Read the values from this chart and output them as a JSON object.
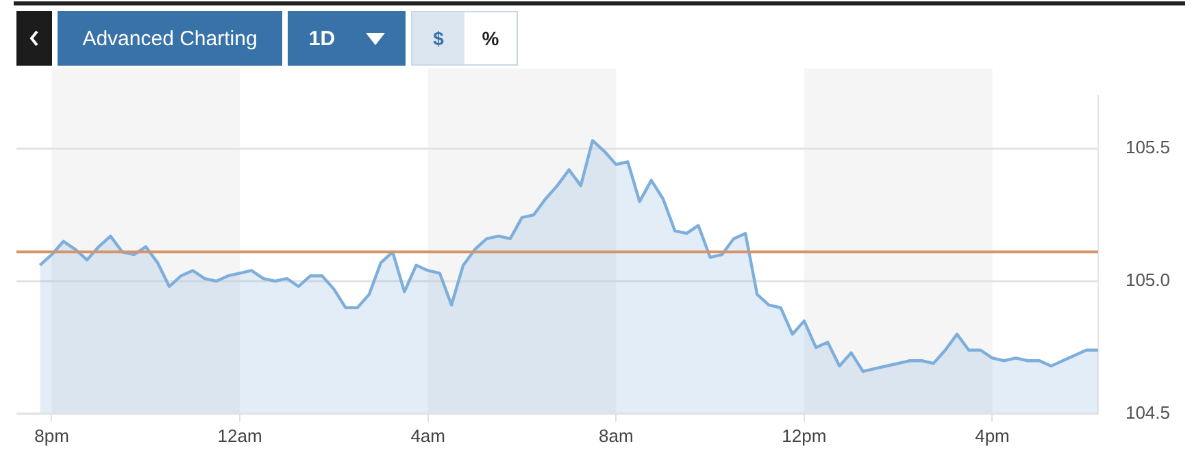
{
  "chart_data": {
    "type": "area",
    "annotations": [
      "Advanced Charting",
      "1D",
      "$",
      "%"
    ],
    "categories": [
      null,
      "8pm",
      null,
      null,
      null,
      null,
      null,
      null,
      null,
      null,
      null,
      null,
      null,
      null,
      null,
      null,
      null,
      "12am",
      null,
      null,
      null,
      null,
      null,
      null,
      null,
      null,
      null,
      null,
      null,
      null,
      null,
      null,
      null,
      "4am",
      null,
      null,
      null,
      null,
      null,
      null,
      null,
      null,
      null,
      null,
      null,
      null,
      null,
      null,
      null,
      "8am",
      null,
      null,
      null,
      null,
      null,
      null,
      null,
      null,
      null,
      null,
      null,
      null,
      null,
      null,
      null,
      "12pm",
      null,
      null,
      null,
      null,
      null,
      null,
      null,
      null,
      null,
      null,
      null,
      null,
      null,
      null,
      null,
      "4pm",
      null,
      null,
      null,
      null,
      null,
      null,
      null,
      null,
      null
    ],
    "values": [
      105.06,
      105.1,
      105.15,
      105.12,
      105.08,
      105.13,
      105.17,
      105.11,
      105.1,
      105.13,
      105.07,
      104.98,
      105.02,
      105.04,
      105.01,
      105.0,
      105.02,
      105.03,
      105.04,
      105.01,
      105.0,
      105.01,
      104.98,
      105.02,
      105.02,
      104.97,
      104.9,
      104.9,
      104.95,
      105.07,
      105.11,
      104.96,
      105.06,
      105.04,
      105.03,
      104.91,
      105.06,
      105.12,
      105.16,
      105.17,
      105.16,
      105.24,
      105.25,
      105.31,
      105.36,
      105.42,
      105.36,
      105.53,
      105.49,
      105.44,
      105.45,
      105.3,
      105.38,
      105.31,
      105.19,
      105.18,
      105.21,
      105.09,
      105.1,
      105.16,
      105.18,
      104.95,
      104.91,
      104.9,
      104.8,
      104.85,
      104.75,
      104.77,
      104.68,
      104.73,
      104.66,
      104.67,
      104.68,
      104.69,
      104.7,
      104.7,
      104.69,
      104.74,
      104.8,
      104.74,
      104.74,
      104.71,
      104.7,
      104.71,
      104.7,
      104.7,
      104.68,
      104.7,
      104.72,
      104.74,
      104.74
    ],
    "color": "#7eaedb",
    "ylim": [
      104.5,
      105.7
    ],
    "yticks": [
      104.5,
      {
        "value": 105,
        "label": "105.0"
      },
      105.5
    ],
    "ref_lines": [
      {
        "axis": "y",
        "value": 105.11,
        "color": "#d4956a"
      }
    ],
    "bands": [
      {
        "axis": "x",
        "from": "8pm",
        "to": "12am",
        "color": "#f5f5f5"
      },
      {
        "axis": "x",
        "from": "4am",
        "to": "8am",
        "color": "#f5f5f5"
      },
      {
        "axis": "x",
        "from": "12pm",
        "to": "4pm",
        "color": "#f5f5f5"
      }
    ],
    "grid": "y",
    "legend": false,
    "marker": "none",
    "line_style": "solid"
  }
}
